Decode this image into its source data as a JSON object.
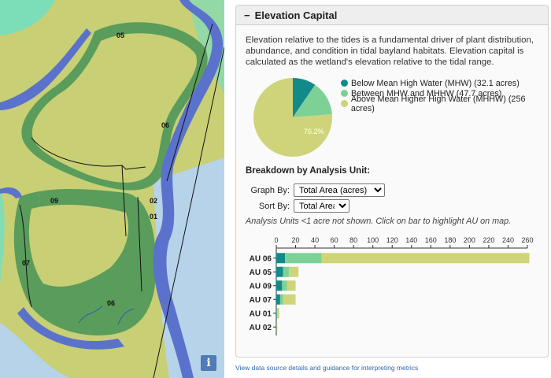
{
  "map": {
    "labels": [
      {
        "key": "au05",
        "text": "05"
      },
      {
        "key": "au06n",
        "text": "06"
      },
      {
        "key": "au09",
        "text": "09"
      },
      {
        "key": "au02",
        "text": "02"
      },
      {
        "key": "au01",
        "text": "01"
      },
      {
        "key": "au07",
        "text": "07"
      },
      {
        "key": "au06",
        "text": "06"
      }
    ],
    "info_button": "i"
  },
  "panel": {
    "toggle": "−",
    "title": "Elevation Capital",
    "intro": "Elevation relative to the tides is a fundamental driver of plant distribution, abundance, and condition in tidal bayland habitats. Elevation capital is calculated as the wetland's elevation relative to the tidal range.",
    "breakdown_title": "Breakdown by Analysis Unit:",
    "graph_by_label": "Graph By:",
    "graph_by_value": "Total Area (acres)",
    "sort_by_label": "Sort By:",
    "sort_by_value": "Total Area",
    "note": "Analysis Units <1 acre not shown. Click on bar to highlight AU on map."
  },
  "colors": {
    "below_mhw": "#138a8a",
    "mhw_mhhw": "#7dd197",
    "above_mhhw": "#cfd47a"
  },
  "chart_data": [
    {
      "type": "pie",
      "slices": [
        {
          "label": "Below Mean High Water (MHW) (32.1 acres)",
          "value": 32.1,
          "color": "#138a8a"
        },
        {
          "label": "Between MHW and MHHW (47.7 acres)",
          "value": 47.7,
          "color": "#7dd197"
        },
        {
          "label": "Above Mean Higher High Water (MHHW) (256 acres)",
          "value": 256,
          "color": "#cfd47a"
        }
      ],
      "data_labels": [
        "76.2%"
      ]
    },
    {
      "type": "bar",
      "orientation": "horizontal",
      "stacked": true,
      "categories": [
        "AU 06",
        "AU 05",
        "AU 09",
        "AU 07",
        "AU 01",
        "AU 02"
      ],
      "series": [
        {
          "values": [
            9,
            7,
            6,
            4,
            0.5,
            0.2
          ],
          "color": "#138a8a"
        },
        {
          "values": [
            38,
            6,
            5,
            3,
            0.5,
            0.3
          ],
          "color": "#7dd197"
        },
        {
          "values": [
            215,
            10,
            9,
            13,
            2,
            0.5
          ],
          "color": "#cfd47a"
        }
      ],
      "xticks": [
        "0",
        "20",
        "40",
        "60",
        "80",
        "100",
        "120",
        "140",
        "160",
        "180",
        "200",
        "220",
        "240",
        "260"
      ],
      "xlim": [
        0,
        260
      ]
    }
  ],
  "footer": {
    "link": "View data source details and guidance for interpreting metrics"
  }
}
